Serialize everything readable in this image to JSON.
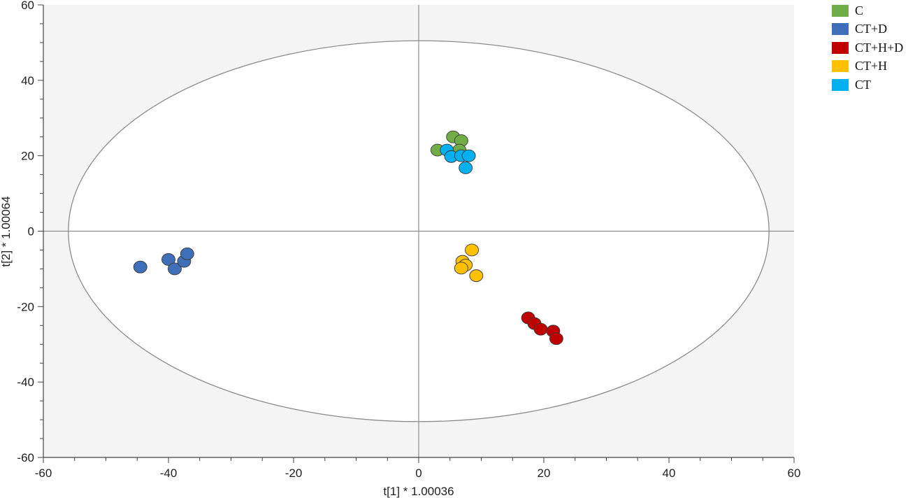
{
  "chart_data": {
    "type": "scatter",
    "xlabel": "t[1] * 1.00036",
    "ylabel": "t[2] * 1.00064",
    "xlim": [
      -60,
      60
    ],
    "ylim": [
      -60,
      60
    ],
    "x_ticks": [
      -60,
      -40,
      -20,
      0,
      20,
      40,
      60
    ],
    "y_ticks": [
      60,
      40,
      20,
      0,
      -20,
      -40,
      -60
    ],
    "ellipse": {
      "center": [
        0,
        0
      ],
      "rx": 56,
      "ry": 50.5
    },
    "background": "#f4f4f4",
    "grid": false,
    "legend_position": "top-right, outside plot",
    "series": [
      {
        "name": "C",
        "color": "#70ad47",
        "points": [
          [
            3,
            21.5
          ],
          [
            5.5,
            25
          ],
          [
            6.8,
            24
          ],
          [
            6.5,
            21.5
          ]
        ]
      },
      {
        "name": "CT+D",
        "color": "#3f6fb8",
        "points": [
          [
            -44.5,
            -9.5
          ],
          [
            -40,
            -7.5
          ],
          [
            -39,
            -10
          ],
          [
            -37.5,
            -8
          ],
          [
            -37,
            -6
          ]
        ]
      },
      {
        "name": "CT+H+D",
        "color": "#c00000",
        "points": [
          [
            17.5,
            -23
          ],
          [
            18.5,
            -24.5
          ],
          [
            19.5,
            -26
          ],
          [
            21.5,
            -26.5
          ],
          [
            22,
            -28.5
          ]
        ]
      },
      {
        "name": "CT+H",
        "color": "#ffc000",
        "points": [
          [
            8.5,
            -5
          ],
          [
            7,
            -8
          ],
          [
            7.5,
            -9
          ],
          [
            6.8,
            -9.8
          ],
          [
            9.2,
            -11.8
          ]
        ]
      },
      {
        "name": "CT",
        "color": "#00b0f0",
        "points": [
          [
            4.5,
            21.5
          ],
          [
            5.2,
            19.8
          ],
          [
            6.8,
            20
          ],
          [
            8,
            20
          ],
          [
            7.5,
            16.8
          ]
        ]
      }
    ]
  }
}
